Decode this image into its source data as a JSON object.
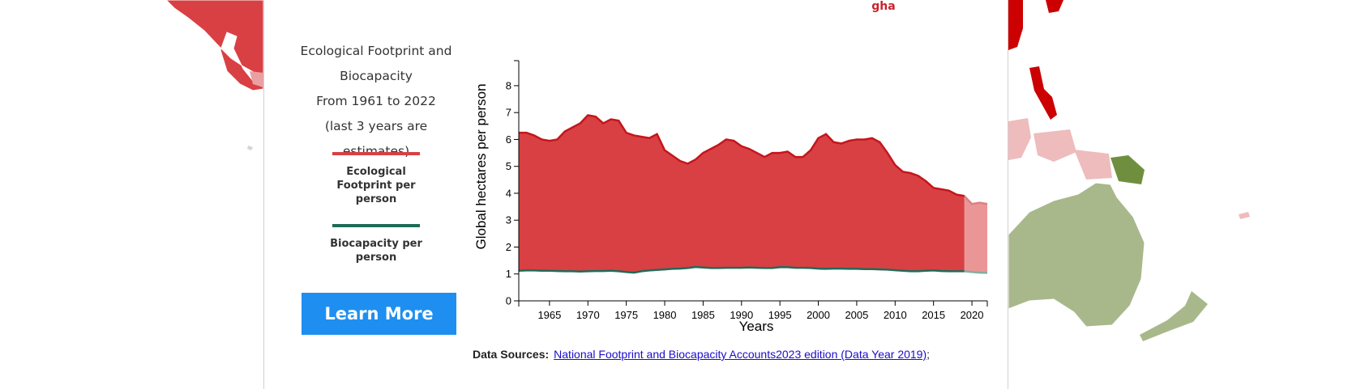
{
  "header": {
    "unit": "gha"
  },
  "button": {
    "label": "Learn More"
  },
  "sources": {
    "label": "Data Sources:",
    "link": "National Footprint and Biocapacity Accounts2023 edition (Data Year 2019)",
    "separator": ";"
  },
  "chart_data": {
    "type": "area",
    "title": "Ecological Footprint and Biocapacity",
    "subtitle": "From 1961 to 2022",
    "note": "(last 3 years are estimates)",
    "x_label": "Years",
    "y_label": "Global hectares per person",
    "x": [
      1961,
      1962,
      1963,
      1964,
      1965,
      1966,
      1967,
      1968,
      1969,
      1970,
      1971,
      1972,
      1973,
      1974,
      1975,
      1976,
      1977,
      1978,
      1979,
      1980,
      1981,
      1982,
      1983,
      1984,
      1985,
      1986,
      1987,
      1988,
      1989,
      1990,
      1991,
      1992,
      1993,
      1994,
      1995,
      1996,
      1997,
      1998,
      1999,
      2000,
      2001,
      2002,
      2003,
      2004,
      2005,
      2006,
      2007,
      2008,
      2009,
      2010,
      2011,
      2012,
      2013,
      2014,
      2015,
      2016,
      2017,
      2018,
      2019,
      2020,
      2021,
      2022
    ],
    "series": [
      {
        "name": "Ecological Footprint per person",
        "color": "#d94043",
        "line_color": "#c4161c",
        "values": [
          6.25,
          6.25,
          6.15,
          6.0,
          5.95,
          6.0,
          6.3,
          6.45,
          6.6,
          6.9,
          6.85,
          6.6,
          6.75,
          6.7,
          6.25,
          6.15,
          6.1,
          6.05,
          6.2,
          5.6,
          5.4,
          5.2,
          5.1,
          5.25,
          5.5,
          5.65,
          5.8,
          6.0,
          5.95,
          5.75,
          5.65,
          5.5,
          5.35,
          5.5,
          5.5,
          5.55,
          5.35,
          5.35,
          5.6,
          6.05,
          6.2,
          5.9,
          5.85,
          5.95,
          6.0,
          6.0,
          6.05,
          5.9,
          5.5,
          5.05,
          4.8,
          4.75,
          4.65,
          4.45,
          4.2,
          4.15,
          4.1,
          3.95,
          3.9,
          3.6,
          3.65,
          3.6
        ]
      },
      {
        "name": "Biocapacity per person",
        "color": "#1f6b58",
        "values": [
          1.12,
          1.13,
          1.13,
          1.12,
          1.12,
          1.11,
          1.1,
          1.1,
          1.09,
          1.1,
          1.11,
          1.11,
          1.12,
          1.1,
          1.07,
          1.05,
          1.1,
          1.13,
          1.15,
          1.17,
          1.19,
          1.2,
          1.22,
          1.26,
          1.24,
          1.22,
          1.22,
          1.23,
          1.23,
          1.23,
          1.24,
          1.23,
          1.22,
          1.22,
          1.25,
          1.25,
          1.23,
          1.23,
          1.22,
          1.2,
          1.19,
          1.2,
          1.2,
          1.19,
          1.19,
          1.18,
          1.18,
          1.17,
          1.16,
          1.14,
          1.12,
          1.1,
          1.1,
          1.12,
          1.13,
          1.11,
          1.1,
          1.1,
          1.1,
          1.07,
          1.05,
          1.04
        ]
      }
    ],
    "estimate_start": 2019,
    "xlim": [
      1961,
      2022
    ],
    "xticks": [
      1965,
      1970,
      1975,
      1980,
      1985,
      1990,
      1995,
      2000,
      2005,
      2010,
      2015,
      2020
    ],
    "ylim": [
      0,
      8.9
    ],
    "yticks": [
      0,
      1,
      2,
      3,
      4,
      5,
      6,
      7,
      8
    ],
    "grid": false
  }
}
